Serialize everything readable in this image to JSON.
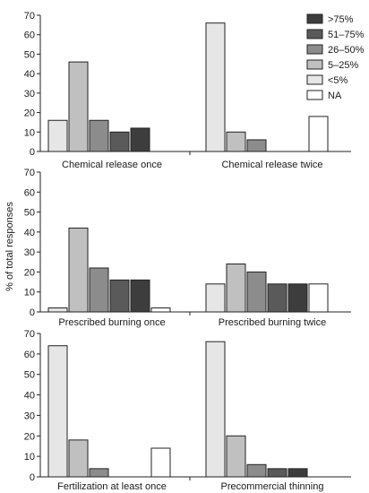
{
  "chart_data": {
    "type": "bar",
    "ylabel": "% of total responses",
    "ylim": [
      0,
      70
    ],
    "yticks": [
      "0",
      "10",
      "20",
      "30",
      "40",
      "50",
      "60",
      "70"
    ],
    "legend_placement": "top-right",
    "series": [
      {
        "name": ">75%",
        "color": "#3d3d3d"
      },
      {
        "name": "51–75%",
        "color": "#5a5a5a"
      },
      {
        "name": "26–50%",
        "color": "#8c8c8c"
      },
      {
        "name": "5–25%",
        "color": "#c0c0c0"
      },
      {
        "name": "<5%",
        "color": "#e6e6e6"
      },
      {
        "name": "NA",
        "color": "#ffffff"
      }
    ],
    "bar_order": [
      "<5%",
      "5–25%",
      "26–50%",
      "51–75%",
      ">75%",
      "NA"
    ],
    "panels": [
      {
        "label": "Chemical release once",
        "values": [
          16,
          46,
          16,
          10,
          12,
          0
        ]
      },
      {
        "label": "Chemical release twice",
        "values": [
          66,
          10,
          6,
          0,
          0,
          18
        ]
      },
      {
        "label": "Prescribed burning once",
        "values": [
          2,
          42,
          22,
          16,
          16,
          2
        ]
      },
      {
        "label": "Prescribed burning twice",
        "values": [
          14,
          24,
          20,
          14,
          14,
          14
        ]
      },
      {
        "label": "Fertilization at least once",
        "values": [
          64,
          18,
          4,
          0,
          0,
          14
        ]
      },
      {
        "label": "Precommercial thinning",
        "values": [
          66,
          20,
          6,
          4,
          4,
          0
        ]
      }
    ]
  }
}
